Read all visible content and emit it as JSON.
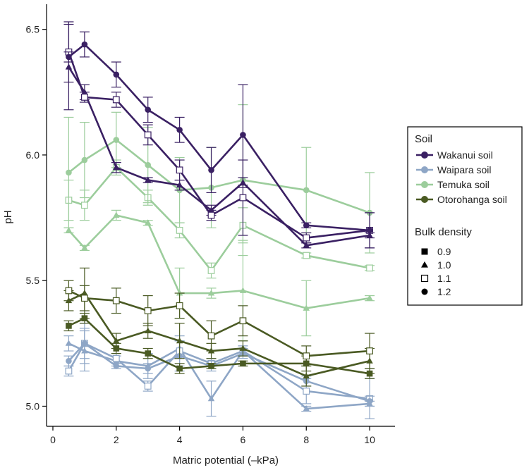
{
  "chart_data": {
    "type": "line",
    "xlabel": "Matric potential (–kPa)",
    "ylabel": "pH",
    "xlim": [
      -0.2,
      10.8
    ],
    "ylim": [
      4.92,
      6.6
    ],
    "xticks": [
      0,
      2,
      4,
      6,
      8,
      10
    ],
    "yticks": [
      5.0,
      5.5,
      6.0,
      6.5
    ],
    "ytick_labels": [
      "5.0",
      "5.5",
      "6.0",
      "6.5"
    ],
    "x": [
      0.5,
      1,
      2,
      3,
      4,
      5,
      6,
      8,
      10
    ],
    "legend": {
      "soil_title": "Soil",
      "density_title": "Bulk density",
      "placement": "right",
      "soils": [
        {
          "name": "Wakanui soil",
          "color": "#3a2063"
        },
        {
          "name": "Waipara soil",
          "color": "#8ea6c6"
        },
        {
          "name": "Temuka soil",
          "color": "#9ccd9c"
        },
        {
          "name": "Otorohanga soil",
          "color": "#4a5a23"
        }
      ],
      "densities": [
        {
          "label": "0.9",
          "marker": "square-filled"
        },
        {
          "label": "1.0",
          "marker": "triangle-filled"
        },
        {
          "label": "1.1",
          "marker": "square-open"
        },
        {
          "label": "1.2",
          "marker": "circle-filled"
        }
      ]
    },
    "series": [
      {
        "soil": "Wakanui soil",
        "density": "1.0",
        "values": [
          6.35,
          6.25,
          5.95,
          5.9,
          5.88,
          5.78,
          5.89,
          5.64,
          5.68
        ],
        "errors": [
          0.17,
          0.03,
          0.02,
          0.01,
          0.02,
          0.02,
          0.02,
          0.01,
          0.01
        ]
      },
      {
        "soil": "Wakanui soil",
        "density": "1.1",
        "values": [
          6.41,
          6.23,
          6.22,
          6.08,
          5.94,
          5.76,
          5.83,
          5.67,
          5.7
        ],
        "errors": [
          0.12,
          0.02,
          0.03,
          0.04,
          0.04,
          0.02,
          0.15,
          0.02,
          0.07
        ]
      },
      {
        "soil": "Wakanui soil",
        "density": "1.2",
        "values": [
          6.39,
          6.44,
          6.32,
          6.18,
          6.1,
          5.94,
          6.08,
          5.72,
          5.7
        ],
        "errors": [
          0.02,
          0.05,
          0.05,
          0.05,
          0.05,
          0.09,
          0.2,
          0.01,
          0.07
        ]
      },
      {
        "soil": "Waipara soil",
        "density": "1.0",
        "values": [
          5.25,
          5.22,
          5.18,
          5.16,
          5.23,
          5.03,
          5.22,
          4.99,
          5.01
        ],
        "errors": [
          0.03,
          0.08,
          0.02,
          0.05,
          0.03,
          0.07,
          0.02,
          0.01,
          0.01
        ]
      },
      {
        "soil": "Waipara soil",
        "density": "1.1",
        "values": [
          5.14,
          5.25,
          5.19,
          5.08,
          5.22,
          5.17,
          5.22,
          5.06,
          5.03
        ],
        "errors": [
          0.02,
          0.08,
          0.02,
          0.02,
          0.06,
          0.02,
          0.02,
          0.05,
          0.08
        ]
      },
      {
        "soil": "Waipara soil",
        "density": "1.2",
        "values": [
          5.18,
          5.25,
          5.16,
          5.15,
          5.2,
          5.16,
          5.21,
          5.1,
          5.02
        ],
        "errors": [
          0.02,
          0.06,
          0.01,
          0.02,
          0.06,
          0.02,
          0.02,
          0.02,
          0.02
        ]
      },
      {
        "soil": "Temuka soil",
        "density": "1.0",
        "values": [
          5.7,
          5.63,
          5.76,
          5.73,
          5.45,
          5.45,
          5.46,
          5.39,
          5.43
        ],
        "errors": [
          0.01,
          0.01,
          0.02,
          0.01,
          0.1,
          0.02,
          0.2,
          0.11,
          0.01
        ]
      },
      {
        "soil": "Temuka soil",
        "density": "1.1",
        "values": [
          5.82,
          5.8,
          5.95,
          5.83,
          5.7,
          5.54,
          5.72,
          5.6,
          5.55
        ],
        "errors": [
          0.08,
          0.06,
          0.03,
          0.03,
          0.03,
          0.03,
          0.07,
          0.01,
          0.01
        ]
      },
      {
        "soil": "Temuka soil",
        "density": "1.2",
        "values": [
          5.93,
          5.98,
          6.06,
          5.96,
          5.86,
          5.87,
          5.9,
          5.86,
          5.77
        ],
        "errors": [
          0.22,
          0.15,
          0.11,
          0.15,
          0.13,
          0.16,
          0.3,
          0.17,
          0.16
        ]
      },
      {
        "soil": "Otorohanga soil",
        "density": "0.9",
        "values": [
          5.32,
          5.35,
          5.23,
          5.21,
          5.15,
          5.16,
          5.17,
          5.17,
          5.13
        ],
        "errors": [
          0.02,
          0.02,
          0.02,
          0.02,
          0.02,
          0.01,
          0.01,
          0.03,
          0.02
        ]
      },
      {
        "soil": "Otorohanga soil",
        "density": "1.0",
        "values": [
          5.42,
          5.45,
          5.26,
          5.3,
          5.26,
          5.22,
          5.23,
          5.12,
          5.18
        ],
        "errors": [
          0.04,
          0.1,
          0.03,
          0.03,
          0.07,
          0.03,
          0.03,
          0.04,
          0.05
        ]
      },
      {
        "soil": "Otorohanga soil",
        "density": "1.1",
        "values": [
          5.46,
          5.43,
          5.42,
          5.38,
          5.4,
          5.28,
          5.34,
          5.2,
          5.22
        ],
        "errors": [
          0.04,
          0.05,
          0.05,
          0.06,
          0.05,
          0.06,
          0.06,
          0.04,
          0.07
        ]
      }
    ]
  }
}
